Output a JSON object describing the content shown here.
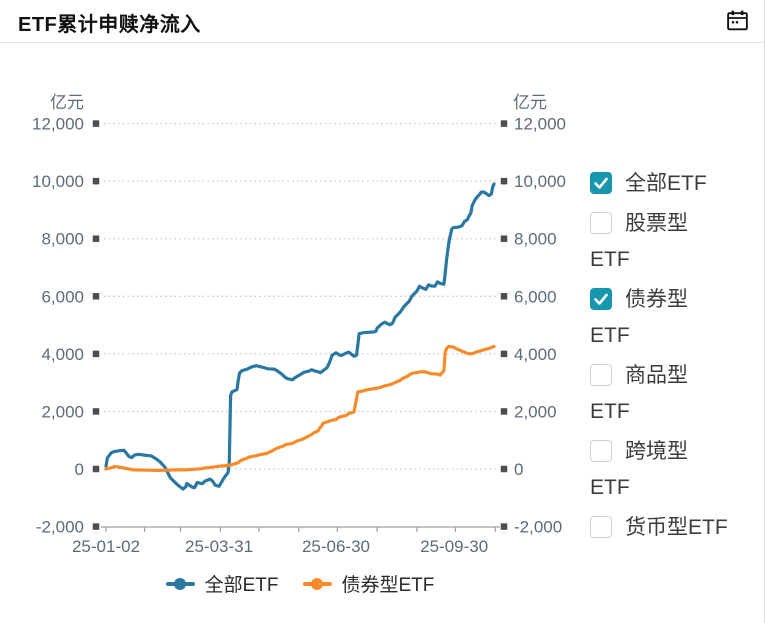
{
  "header": {
    "title": "ETF累计申赎净流入"
  },
  "chart_data": {
    "type": "line",
    "title": "ETF累计申赎净流入",
    "y_unit_left": "亿元",
    "y_unit_right": "亿元",
    "ylim": [
      -2000,
      12000
    ],
    "y_tick_step": 2000,
    "grid": "dotted-horizontal",
    "legend_position": "bottom",
    "x_start": "2025-01-02",
    "x_end": "2025-10-31",
    "x_ticks": [
      {
        "date": "2025-01-02",
        "label": "25-01-02"
      },
      {
        "date": "2025-03-31",
        "label": "25-03-31"
      },
      {
        "date": "2025-06-30",
        "label": "25-06-30"
      },
      {
        "date": "2025-09-30",
        "label": "25-09-30"
      }
    ],
    "series": [
      {
        "name": "全部ETF",
        "color": "#2a77a2",
        "points": [
          [
            "2025-01-02",
            100
          ],
          [
            "2025-01-03",
            380
          ],
          [
            "2025-01-06",
            560
          ],
          [
            "2025-01-08",
            600
          ],
          [
            "2025-01-13",
            640
          ],
          [
            "2025-01-16",
            650
          ],
          [
            "2025-01-20",
            430
          ],
          [
            "2025-01-22",
            400
          ],
          [
            "2025-01-24",
            480
          ],
          [
            "2025-01-27",
            510
          ],
          [
            "2025-02-03",
            470
          ],
          [
            "2025-02-06",
            460
          ],
          [
            "2025-02-10",
            350
          ],
          [
            "2025-02-13",
            250
          ],
          [
            "2025-02-17",
            60
          ],
          [
            "2025-02-19",
            -120
          ],
          [
            "2025-02-21",
            -300
          ],
          [
            "2025-02-25",
            -480
          ],
          [
            "2025-02-27",
            -560
          ],
          [
            "2025-03-03",
            -700
          ],
          [
            "2025-03-05",
            -620
          ],
          [
            "2025-03-06",
            -500
          ],
          [
            "2025-03-10",
            -630
          ],
          [
            "2025-03-12",
            -650
          ],
          [
            "2025-03-14",
            -470
          ],
          [
            "2025-03-18",
            -510
          ],
          [
            "2025-03-20",
            -420
          ],
          [
            "2025-03-24",
            -350
          ],
          [
            "2025-03-26",
            -420
          ],
          [
            "2025-03-28",
            -560
          ],
          [
            "2025-03-31",
            -600
          ],
          [
            "2025-04-02",
            -450
          ],
          [
            "2025-04-04",
            -300
          ],
          [
            "2025-04-07",
            -120
          ],
          [
            "2025-04-08",
            260
          ],
          [
            "2025-04-09",
            2550
          ],
          [
            "2025-04-10",
            2680
          ],
          [
            "2025-04-14",
            2760
          ],
          [
            "2025-04-15",
            3100
          ],
          [
            "2025-04-16",
            3340
          ],
          [
            "2025-04-18",
            3420
          ],
          [
            "2025-04-22",
            3470
          ],
          [
            "2025-04-25",
            3540
          ],
          [
            "2025-04-29",
            3590
          ],
          [
            "2025-05-06",
            3510
          ],
          [
            "2025-05-08",
            3480
          ],
          [
            "2025-05-13",
            3470
          ],
          [
            "2025-05-15",
            3420
          ],
          [
            "2025-05-19",
            3290
          ],
          [
            "2025-05-21",
            3200
          ],
          [
            "2025-05-23",
            3140
          ],
          [
            "2025-05-27",
            3100
          ],
          [
            "2025-05-29",
            3170
          ],
          [
            "2025-06-03",
            3300
          ],
          [
            "2025-06-05",
            3360
          ],
          [
            "2025-06-09",
            3400
          ],
          [
            "2025-06-11",
            3450
          ],
          [
            "2025-06-13",
            3410
          ],
          [
            "2025-06-16",
            3380
          ],
          [
            "2025-06-18",
            3350
          ],
          [
            "2025-06-20",
            3420
          ],
          [
            "2025-06-23",
            3520
          ],
          [
            "2025-06-25",
            3700
          ],
          [
            "2025-06-26",
            3820
          ],
          [
            "2025-06-27",
            3950
          ],
          [
            "2025-06-30",
            4040
          ],
          [
            "2025-07-02",
            3980
          ],
          [
            "2025-07-04",
            3940
          ],
          [
            "2025-07-08",
            4030
          ],
          [
            "2025-07-10",
            4060
          ],
          [
            "2025-07-14",
            3920
          ],
          [
            "2025-07-16",
            3950
          ],
          [
            "2025-07-17",
            4300
          ],
          [
            "2025-07-18",
            4700
          ],
          [
            "2025-07-22",
            4740
          ],
          [
            "2025-07-25",
            4750
          ],
          [
            "2025-07-29",
            4760
          ],
          [
            "2025-07-31",
            4780
          ],
          [
            "2025-08-01",
            4890
          ],
          [
            "2025-08-05",
            5050
          ],
          [
            "2025-08-07",
            5100
          ],
          [
            "2025-08-11",
            5010
          ],
          [
            "2025-08-13",
            5060
          ],
          [
            "2025-08-15",
            5270
          ],
          [
            "2025-08-19",
            5450
          ],
          [
            "2025-08-22",
            5650
          ],
          [
            "2025-08-26",
            5830
          ],
          [
            "2025-08-28",
            6000
          ],
          [
            "2025-09-01",
            6180
          ],
          [
            "2025-09-03",
            6350
          ],
          [
            "2025-09-05",
            6300
          ],
          [
            "2025-09-08",
            6240
          ],
          [
            "2025-09-10",
            6400
          ],
          [
            "2025-09-12",
            6360
          ],
          [
            "2025-09-15",
            6350
          ],
          [
            "2025-09-17",
            6500
          ],
          [
            "2025-09-19",
            6450
          ],
          [
            "2025-09-22",
            6420
          ],
          [
            "2025-09-23",
            6800
          ],
          [
            "2025-09-24",
            7250
          ],
          [
            "2025-09-25",
            7580
          ],
          [
            "2025-09-26",
            7900
          ],
          [
            "2025-09-28",
            8320
          ],
          [
            "2025-09-29",
            8380
          ],
          [
            "2025-09-30",
            8390
          ],
          [
            "2025-10-03",
            8400
          ],
          [
            "2025-10-06",
            8450
          ],
          [
            "2025-10-08",
            8600
          ],
          [
            "2025-10-10",
            8650
          ],
          [
            "2025-10-13",
            8900
          ],
          [
            "2025-10-14",
            9150
          ],
          [
            "2025-10-16",
            9330
          ],
          [
            "2025-10-17",
            9400
          ],
          [
            "2025-10-20",
            9550
          ],
          [
            "2025-10-21",
            9620
          ],
          [
            "2025-10-23",
            9620
          ],
          [
            "2025-10-24",
            9600
          ],
          [
            "2025-10-27",
            9500
          ],
          [
            "2025-10-28",
            9520
          ],
          [
            "2025-10-29",
            9560
          ],
          [
            "2025-10-30",
            9800
          ],
          [
            "2025-10-31",
            9900
          ]
        ]
      },
      {
        "name": "债券型ETF",
        "color": "#f78b2c",
        "points": [
          [
            "2025-01-02",
            0
          ],
          [
            "2025-01-06",
            40
          ],
          [
            "2025-01-09",
            90
          ],
          [
            "2025-01-13",
            60
          ],
          [
            "2025-01-16",
            30
          ],
          [
            "2025-01-20",
            0
          ],
          [
            "2025-01-23",
            -30
          ],
          [
            "2025-02-05",
            -40
          ],
          [
            "2025-02-12",
            -50
          ],
          [
            "2025-02-18",
            -40
          ],
          [
            "2025-02-25",
            -30
          ],
          [
            "2025-03-04",
            -30
          ],
          [
            "2025-03-11",
            -10
          ],
          [
            "2025-03-17",
            10
          ],
          [
            "2025-03-21",
            40
          ],
          [
            "2025-03-25",
            60
          ],
          [
            "2025-03-28",
            80
          ],
          [
            "2025-04-01",
            100
          ],
          [
            "2025-04-07",
            120
          ],
          [
            "2025-04-10",
            150
          ],
          [
            "2025-04-15",
            220
          ],
          [
            "2025-04-17",
            300
          ],
          [
            "2025-04-21",
            360
          ],
          [
            "2025-04-23",
            410
          ],
          [
            "2025-04-28",
            455
          ],
          [
            "2025-05-02",
            500
          ],
          [
            "2025-05-07",
            540
          ],
          [
            "2025-05-09",
            580
          ],
          [
            "2025-05-12",
            650
          ],
          [
            "2025-05-14",
            700
          ],
          [
            "2025-05-16",
            740
          ],
          [
            "2025-05-20",
            800
          ],
          [
            "2025-05-22",
            850
          ],
          [
            "2025-05-26",
            880
          ],
          [
            "2025-05-28",
            910
          ],
          [
            "2025-05-30",
            960
          ],
          [
            "2025-06-03",
            1020
          ],
          [
            "2025-06-05",
            1060
          ],
          [
            "2025-06-09",
            1150
          ],
          [
            "2025-06-11",
            1200
          ],
          [
            "2025-06-13",
            1260
          ],
          [
            "2025-06-16",
            1320
          ],
          [
            "2025-06-17",
            1400
          ],
          [
            "2025-06-19",
            1500
          ],
          [
            "2025-06-20",
            1590
          ],
          [
            "2025-06-24",
            1650
          ],
          [
            "2025-06-26",
            1680
          ],
          [
            "2025-06-30",
            1720
          ],
          [
            "2025-07-02",
            1790
          ],
          [
            "2025-07-04",
            1820
          ],
          [
            "2025-07-08",
            1860
          ],
          [
            "2025-07-10",
            1930
          ],
          [
            "2025-07-14",
            1980
          ],
          [
            "2025-07-15",
            2200
          ],
          [
            "2025-07-16",
            2450
          ],
          [
            "2025-07-17",
            2680
          ],
          [
            "2025-07-21",
            2710
          ],
          [
            "2025-07-24",
            2750
          ],
          [
            "2025-07-28",
            2780
          ],
          [
            "2025-07-31",
            2800
          ],
          [
            "2025-08-04",
            2840
          ],
          [
            "2025-08-07",
            2890
          ],
          [
            "2025-08-11",
            2930
          ],
          [
            "2025-08-13",
            2960
          ],
          [
            "2025-08-15",
            3000
          ],
          [
            "2025-08-19",
            3080
          ],
          [
            "2025-08-21",
            3150
          ],
          [
            "2025-08-25",
            3230
          ],
          [
            "2025-08-27",
            3300
          ],
          [
            "2025-08-29",
            3330
          ],
          [
            "2025-09-02",
            3360
          ],
          [
            "2025-09-04",
            3380
          ],
          [
            "2025-09-08",
            3370
          ],
          [
            "2025-09-10",
            3340
          ],
          [
            "2025-09-12",
            3310
          ],
          [
            "2025-09-16",
            3300
          ],
          [
            "2025-09-18",
            3290
          ],
          [
            "2025-09-19",
            3260
          ],
          [
            "2025-09-22",
            3420
          ],
          [
            "2025-09-23",
            4050
          ],
          [
            "2025-09-24",
            4180
          ],
          [
            "2025-09-25",
            4230
          ],
          [
            "2025-09-26",
            4260
          ],
          [
            "2025-09-29",
            4240
          ],
          [
            "2025-09-30",
            4220
          ],
          [
            "2025-10-03",
            4150
          ],
          [
            "2025-10-07",
            4080
          ],
          [
            "2025-10-10",
            4020
          ],
          [
            "2025-10-13",
            4000
          ],
          [
            "2025-10-15",
            4020
          ],
          [
            "2025-10-17",
            4060
          ],
          [
            "2025-10-21",
            4110
          ],
          [
            "2025-10-23",
            4140
          ],
          [
            "2025-10-27",
            4190
          ],
          [
            "2025-10-29",
            4220
          ],
          [
            "2025-10-31",
            4260
          ]
        ]
      }
    ]
  },
  "filter_panel": {
    "accent_color": "#1797ad",
    "items": [
      {
        "line1": "全部ETF",
        "line2": "",
        "checked": true
      },
      {
        "line1": "股票型",
        "line2": "ETF",
        "checked": false
      },
      {
        "line1": "债券型",
        "line2": "ETF",
        "checked": true
      },
      {
        "line1": "商品型",
        "line2": "ETF",
        "checked": false
      },
      {
        "line1": "跨境型",
        "line2": "ETF",
        "checked": false
      },
      {
        "line1": "货币型ETF",
        "line2": "",
        "checked": false
      }
    ]
  }
}
